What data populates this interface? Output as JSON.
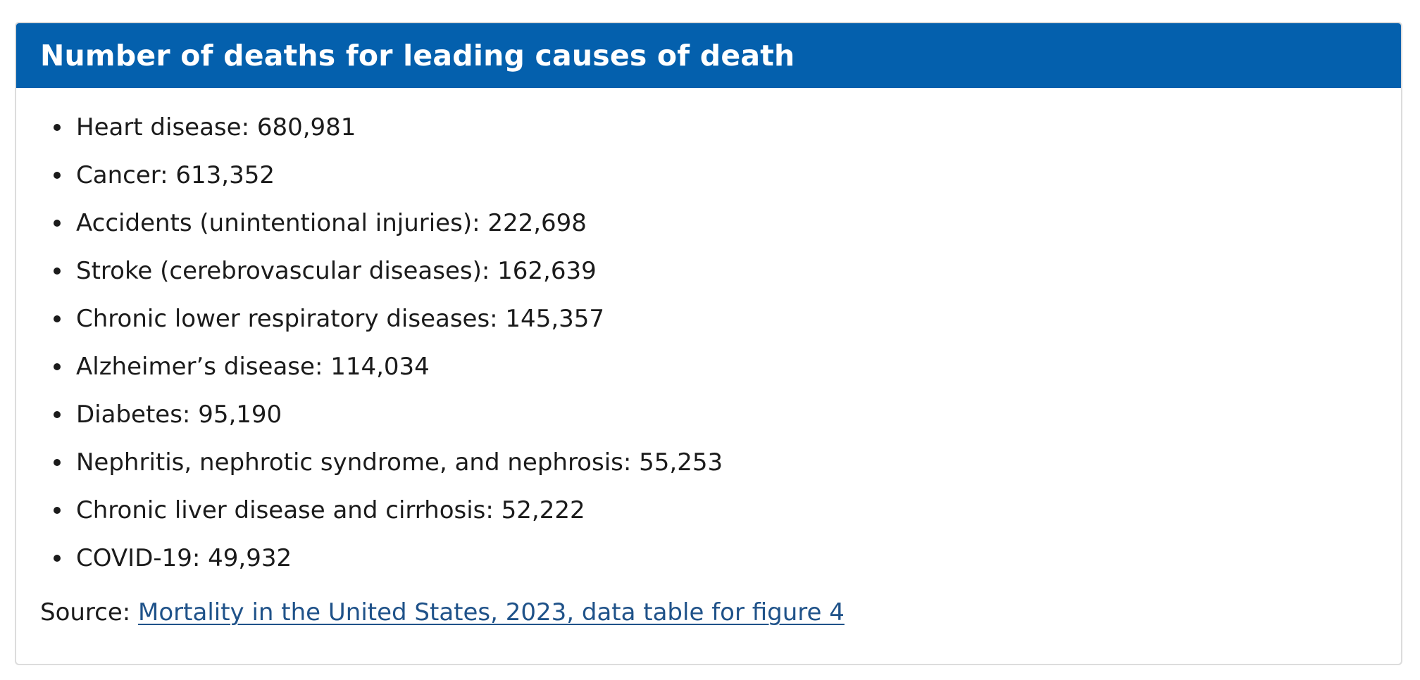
{
  "card": {
    "title": "Number of deaths for leading causes of death"
  },
  "causes": [
    {
      "text": "Heart disease: 680,981"
    },
    {
      "text": "Cancer: 613,352"
    },
    {
      "text": "Accidents (unintentional injuries): 222,698"
    },
    {
      "text": "Stroke (cerebrovascular diseases): 162,639"
    },
    {
      "text": "Chronic lower respiratory diseases: 145,357"
    },
    {
      "text": "Alzheimer’s disease: 114,034"
    },
    {
      "text": "Diabetes: 95,190"
    },
    {
      "text": "Nephritis, nephrotic syndrome, and nephrosis: 55,253"
    },
    {
      "text": "Chronic liver disease and cirrhosis: 52,222"
    },
    {
      "text": "COVID-19: 49,932"
    }
  ],
  "source": {
    "label": "Source:",
    "link_text": "Mortality in the United States, 2023, data table for figure 4"
  },
  "colors": {
    "header_bg": "#0460ad",
    "header_text": "#ffffff",
    "link": "#1f5289",
    "body_text": "#1b1b1b"
  }
}
